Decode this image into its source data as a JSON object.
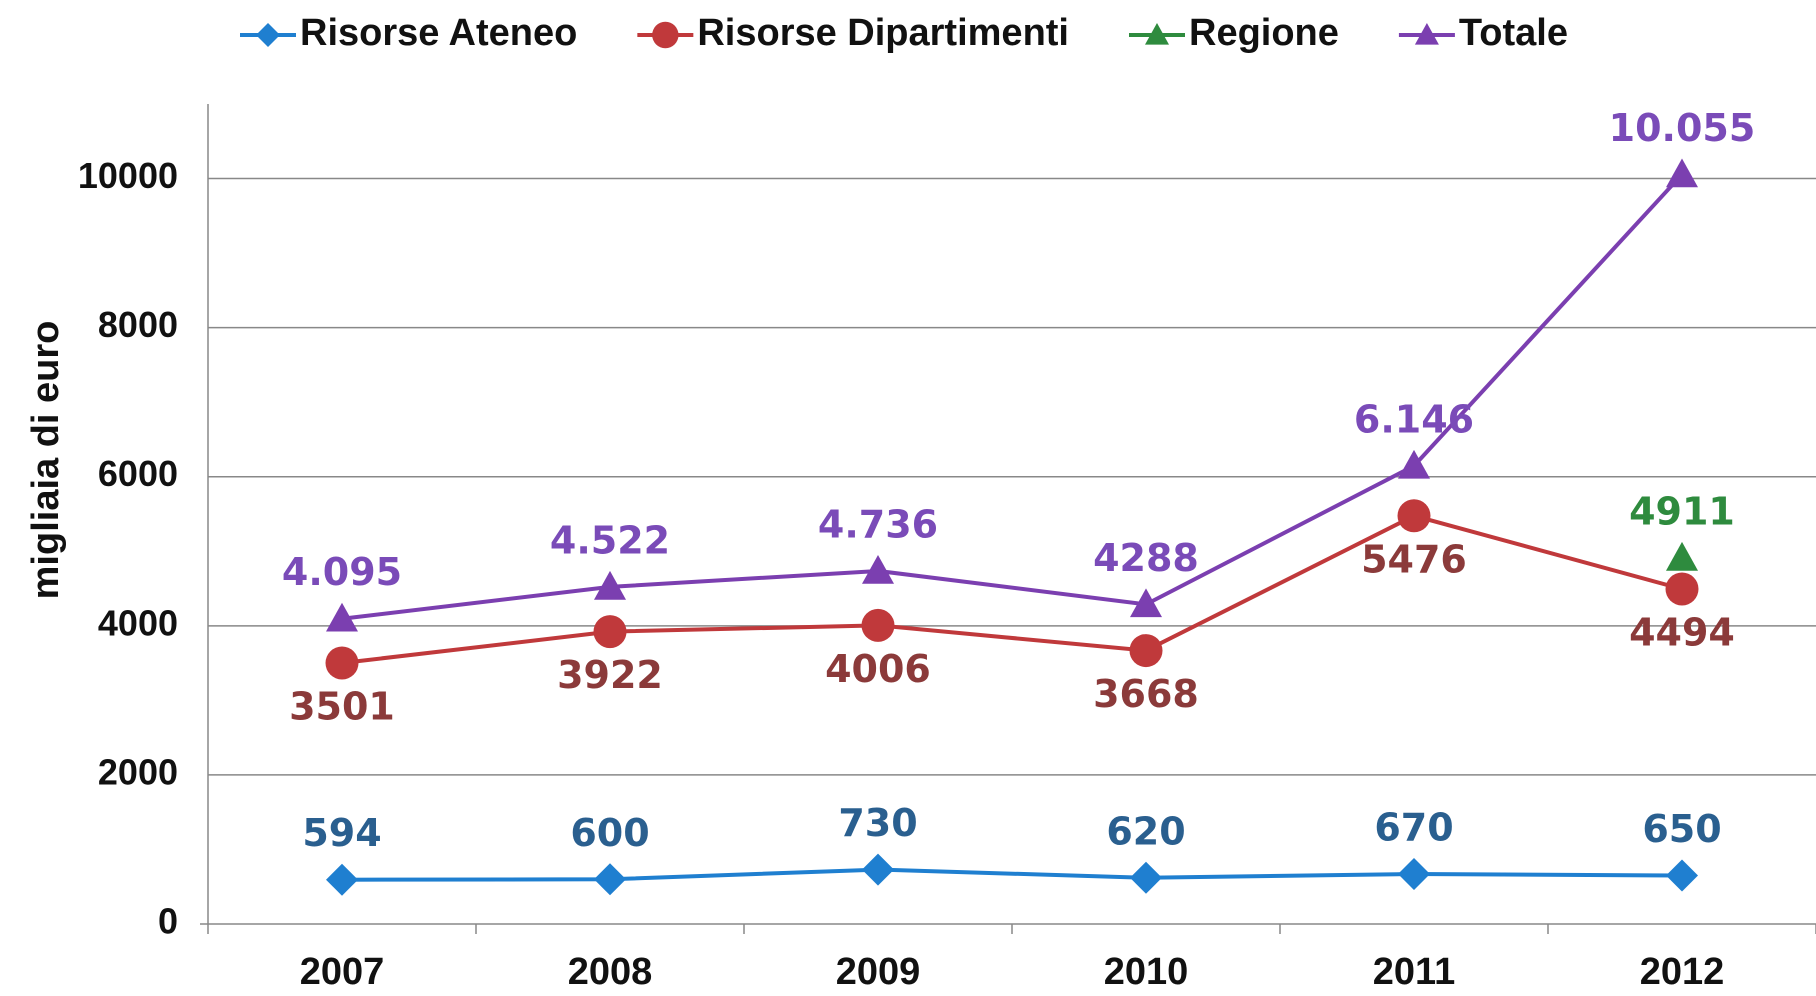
{
  "chart_data": {
    "type": "line",
    "y_label": "migliaia di euro",
    "categories": [
      "2007",
      "2008",
      "2009",
      "2010",
      "2011",
      "2012"
    ],
    "series": [
      {
        "name": "Risorse Ateneo",
        "color": "#1f7fd0",
        "marker": "diamond",
        "values": [
          594,
          600,
          730,
          620,
          670,
          650
        ]
      },
      {
        "name": "Risorse Dipartimenti",
        "color": "#c0393b",
        "marker": "circle",
        "values": [
          3501,
          3922,
          4006,
          3668,
          5476,
          4494
        ]
      },
      {
        "name": "Regione",
        "color": "#2e8b3e",
        "marker": "triangle",
        "values": [
          null,
          null,
          null,
          null,
          null,
          4911
        ]
      },
      {
        "name": "Totale",
        "color": "#7b3fb0",
        "marker": "triangle",
        "values": [
          4095,
          4522,
          4736,
          4288,
          6146,
          10055
        ],
        "value_labels": [
          "4.095",
          "4.522",
          "4.736",
          "4288",
          "6.146",
          "10.055"
        ]
      }
    ],
    "ylim": [
      0,
      11000
    ],
    "yticks": [
      0,
      2000,
      4000,
      6000,
      8000,
      10000
    ],
    "grid": true,
    "legend": "top"
  }
}
